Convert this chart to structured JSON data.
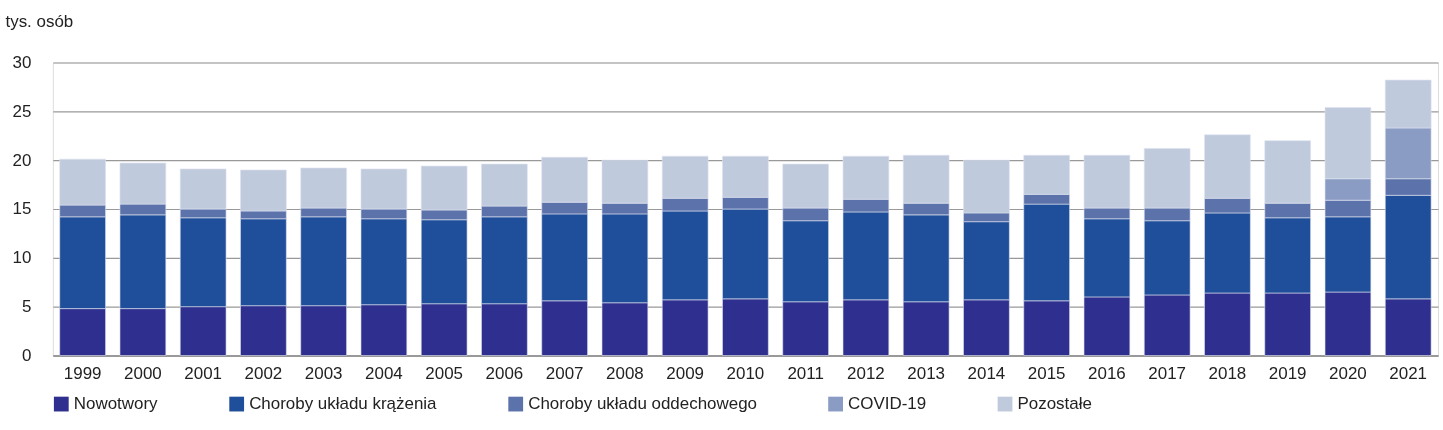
{
  "chart_data": {
    "type": "bar",
    "stacked": true,
    "ylabel": "tys. osób",
    "categories": [
      "1999",
      "2000",
      "2001",
      "2002",
      "2003",
      "2004",
      "2005",
      "2006",
      "2007",
      "2008",
      "2009",
      "2010",
      "2011",
      "2012",
      "2013",
      "2014",
      "2015",
      "2016",
      "2017",
      "2018",
      "2019",
      "2020",
      "2021"
    ],
    "series": [
      {
        "name": "Nowotwory",
        "color": "#2e2f8e",
        "values": [
          4.8,
          4.8,
          5.0,
          5.1,
          5.1,
          5.2,
          5.3,
          5.3,
          5.6,
          5.4,
          5.7,
          5.8,
          5.5,
          5.7,
          5.5,
          5.7,
          5.6,
          6.0,
          6.2,
          6.4,
          6.4,
          6.5,
          5.8
        ]
      },
      {
        "name": "Choroby układu krążenia",
        "color": "#1f4e9a",
        "values": [
          9.4,
          9.6,
          9.1,
          8.9,
          9.1,
          8.8,
          8.6,
          8.9,
          8.9,
          9.1,
          9.1,
          9.2,
          8.3,
          9.0,
          8.9,
          8.0,
          9.9,
          8.0,
          7.6,
          8.2,
          7.7,
          7.7,
          10.6
        ]
      },
      {
        "name": "Choroby układu oddechowego",
        "color": "#5b72aa",
        "values": [
          1.2,
          1.1,
          0.9,
          0.8,
          0.9,
          1.0,
          1.0,
          1.1,
          1.2,
          1.1,
          1.3,
          1.2,
          1.3,
          1.3,
          1.2,
          0.9,
          1.0,
          1.1,
          1.3,
          1.5,
          1.5,
          1.7,
          1.7
        ]
      },
      {
        "name": "COVID-19",
        "color": "#8a9bc4",
        "values": [
          null,
          null,
          null,
          null,
          null,
          null,
          null,
          null,
          null,
          null,
          null,
          null,
          null,
          null,
          null,
          null,
          null,
          null,
          null,
          null,
          null,
          2.2,
          5.2
        ]
      },
      {
        "name": "Pozostałe",
        "color": "#c0cadd",
        "values": [
          4.7,
          4.2,
          4.1,
          4.2,
          4.1,
          4.1,
          4.5,
          4.3,
          4.6,
          4.4,
          4.3,
          4.2,
          4.5,
          4.4,
          4.9,
          5.4,
          4.0,
          5.4,
          6.1,
          6.5,
          6.4,
          7.3,
          4.9
        ]
      }
    ],
    "ylim": [
      0,
      30
    ],
    "yticks": [
      0,
      5,
      10,
      15,
      20,
      25,
      30
    ],
    "grid": "y",
    "legend": "bottom"
  }
}
